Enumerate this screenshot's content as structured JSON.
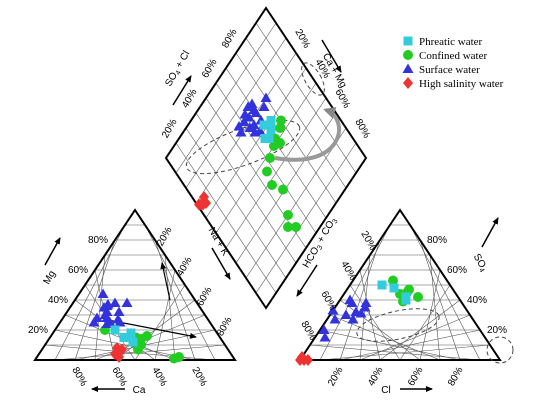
{
  "chart_data": {
    "type": "scatter",
    "subtype": "piper-diagram",
    "legend": {
      "placement": "top-right",
      "entries": [
        {
          "name": "Phreatic water",
          "marker": "square",
          "color": "#33ccdd"
        },
        {
          "name": "Confined water",
          "marker": "circle",
          "color": "#22cc22"
        },
        {
          "name": "Surface water",
          "marker": "triangle",
          "color": "#3333dd"
        },
        {
          "name": "High salinity water",
          "marker": "diamond",
          "color": "#ee3333"
        }
      ]
    },
    "axes": {
      "cation": {
        "left": "Mg",
        "bottom": "Ca",
        "right": "Na + K",
        "ticks": [
          "20%",
          "40%",
          "60%",
          "80%"
        ]
      },
      "anion": {
        "left": "HCO3 + CO3",
        "bottom": "Cl",
        "right": "SO4",
        "ticks": [
          "20%",
          "40%",
          "60%",
          "80%"
        ]
      },
      "diamond": {
        "upper_left": "SO4 + Cl",
        "upper_right": "Ca + Mg",
        "ticks": [
          "20%",
          "40%",
          "60%",
          "80%"
        ]
      }
    },
    "cation_points": {
      "Phreatic water": [
        [
          20,
          50,
          30
        ],
        [
          15,
          48,
          37
        ],
        [
          18,
          43,
          39
        ],
        [
          12,
          45,
          43
        ]
      ],
      "Confined water": [
        [
          20,
          55,
          25
        ],
        [
          15,
          42,
          43
        ],
        [
          14,
          40,
          46
        ],
        [
          10,
          42,
          48
        ],
        [
          16,
          36,
          48
        ],
        [
          7,
          45,
          48
        ],
        [
          2,
          27,
          71
        ],
        [
          1,
          30,
          69
        ]
      ],
      "Surface water": [
        [
          44,
          44,
          12
        ],
        [
          36,
          46,
          18
        ],
        [
          32,
          48,
          20
        ],
        [
          35,
          48,
          17
        ],
        [
          30,
          50,
          20
        ],
        [
          28,
          50,
          22
        ],
        [
          28,
          55,
          17
        ],
        [
          25,
          50,
          25
        ],
        [
          38,
          41,
          21
        ],
        [
          24,
          52,
          24
        ],
        [
          27,
          45,
          28
        ],
        [
          38,
          35,
          27
        ],
        [
          32,
          42,
          26
        ],
        [
          25,
          58,
          17
        ],
        [
          37,
          45,
          18
        ],
        [
          25,
          45,
          30
        ]
      ],
      "High salinity water": [
        [
          8,
          55,
          37
        ],
        [
          4,
          58,
          38
        ],
        [
          7,
          53,
          40
        ],
        [
          2,
          57,
          41
        ]
      ]
    },
    "anion_points": {
      "Phreatic water": [
        [
          40,
          27,
          33
        ],
        [
          42,
          26,
          32
        ],
        [
          48,
          29,
          23
        ],
        [
          50,
          34,
          16
        ]
      ],
      "Confined water": [
        [
          45,
          24,
          31
        ],
        [
          42,
          20,
          38
        ],
        [
          39,
          29,
          32
        ],
        [
          53,
          27,
          20
        ],
        [
          47,
          22,
          31
        ],
        [
          44,
          28,
          28
        ]
      ],
      "Surface water": [
        [
          15,
          80,
          5
        ],
        [
          20,
          78,
          2
        ],
        [
          27,
          69,
          4
        ],
        [
          33,
          67,
          0
        ],
        [
          38,
          55,
          7
        ],
        [
          31,
          54,
          15
        ],
        [
          35,
          50,
          15
        ],
        [
          32,
          56,
          12
        ],
        [
          40,
          55,
          5
        ],
        [
          27,
          60,
          13
        ],
        [
          30,
          62,
          8
        ],
        [
          38,
          48,
          14
        ]
      ],
      "High salinity water": [
        [
          0,
          96,
          4
        ],
        [
          0,
          98,
          2
        ],
        [
          2,
          98,
          0
        ],
        [
          0,
          100,
          0
        ]
      ]
    },
    "diamond_points": {
      "Phreatic water": [
        [
          57,
          38
        ],
        [
          60,
          35
        ],
        [
          62,
          40
        ],
        [
          57,
          44
        ],
        [
          55,
          42
        ]
      ],
      "Confined water": [
        [
          48,
          38
        ],
        [
          55,
          30
        ],
        [
          53,
          33
        ],
        [
          52,
          39
        ],
        [
          50,
          42
        ],
        [
          48,
          48
        ],
        [
          45,
          54
        ],
        [
          38,
          56
        ],
        [
          31,
          52
        ],
        [
          20,
          58
        ],
        [
          16,
          62
        ],
        [
          12,
          58
        ]
      ],
      "Surface water": [
        [
          70,
          30
        ],
        [
          68,
          34
        ],
        [
          67,
          45
        ],
        [
          62,
          44
        ],
        [
          65,
          40
        ],
        [
          64,
          47
        ],
        [
          70,
          40
        ],
        [
          72,
          40
        ],
        [
          75,
          39
        ],
        [
          76,
          42
        ],
        [
          72,
          45
        ],
        [
          73,
          49
        ],
        [
          74,
          53
        ],
        [
          71,
          54
        ],
        [
          68,
          48
        ],
        [
          75,
          46
        ]
      ],
      "High salinity water": [
        [
          65,
          95
        ],
        [
          68,
          94
        ],
        [
          68,
          99
        ],
        [
          67,
          98
        ],
        [
          66,
          97
        ]
      ]
    }
  }
}
